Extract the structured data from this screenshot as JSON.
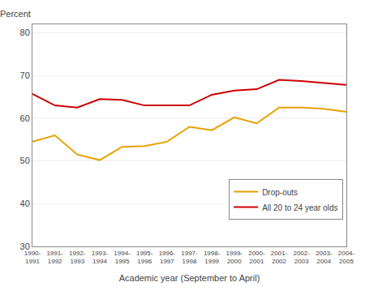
{
  "chart_data": {
    "type": "line",
    "ylabel": "Percent",
    "xlabel": "Academic year (September to April)",
    "categories": [
      "1990-\n1991",
      "1991-\n1992",
      "1992-\n1993",
      "1993-\n1994",
      "1994-\n1995",
      "1995-\n1996",
      "1996-\n1997",
      "1997-\n1998",
      "1998-\n1999",
      "1999-\n2000",
      "2000-\n2001",
      "2001-\n2002",
      "2002-\n2003",
      "2003-\n2004",
      "2004-\n2005"
    ],
    "series": [
      {
        "name": "Drop-outs",
        "color": "#E8A000",
        "values": [
          54.5,
          56.0,
          51.5,
          50.2,
          53.3,
          53.5,
          54.5,
          58.0,
          57.2,
          60.2,
          58.8,
          62.5,
          62.5,
          62.2,
          61.5
        ]
      },
      {
        "name": "All 20 to 24 year olds",
        "color": "#CC0000",
        "values": [
          65.7,
          63.0,
          62.5,
          64.5,
          64.3,
          63.0,
          63.0,
          63.0,
          65.5,
          66.5,
          66.8,
          69.0,
          68.7,
          68.2,
          67.8
        ]
      }
    ],
    "ylim": [
      30,
      82
    ],
    "yticks": [
      30,
      40,
      50,
      60,
      70,
      80
    ],
    "grid": true,
    "legend": "lower right"
  }
}
